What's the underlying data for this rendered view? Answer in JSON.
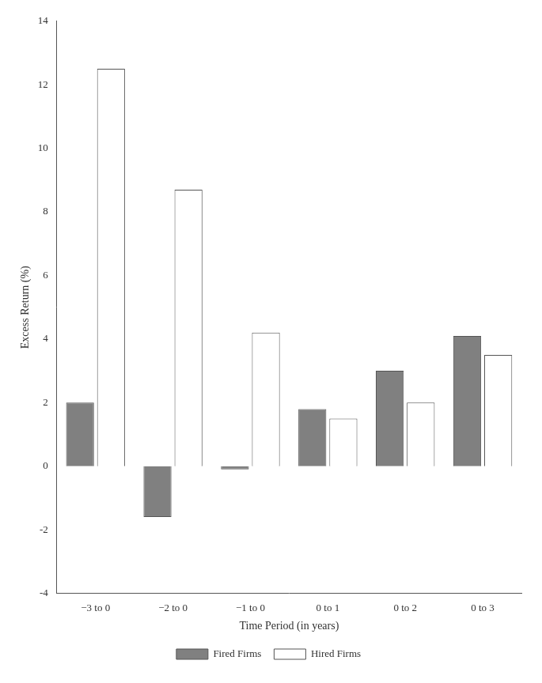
{
  "chart_data": {
    "type": "bar",
    "categories": [
      "−3 to 0",
      "−2 to 0",
      "−1 to 0",
      "0 to 1",
      "0 to 2",
      "0 to 3"
    ],
    "series": [
      {
        "name": "Fired Firms",
        "color": "#808080",
        "values": [
          2.0,
          -1.6,
          -0.1,
          1.8,
          3.0,
          4.1
        ]
      },
      {
        "name": "Hired Firms",
        "color": "#ffffff",
        "values": [
          12.5,
          8.7,
          4.2,
          1.5,
          2.0,
          3.5
        ]
      }
    ],
    "xlabel": "Time Period (in years)",
    "ylabel": "Excess Return (%)",
    "ylim": [
      -4,
      14
    ],
    "yticks": [
      -4,
      -2,
      0,
      2,
      4,
      6,
      8,
      10,
      12,
      14
    ],
    "grid": false,
    "legend": "bottom"
  }
}
